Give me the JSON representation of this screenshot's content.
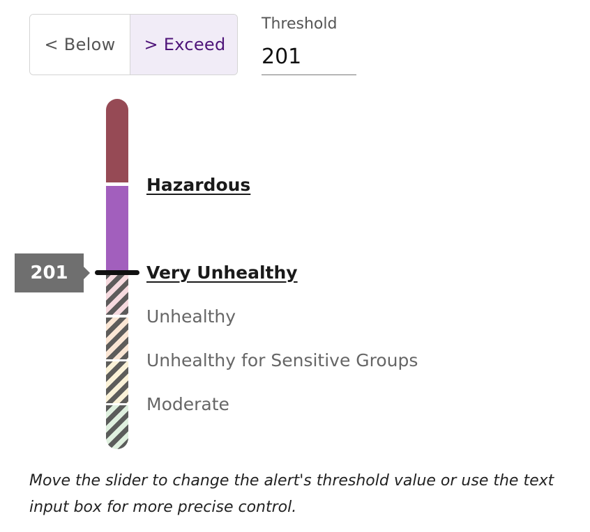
{
  "toggle": {
    "below_label": "< Below",
    "exceed_label": "> Exceed",
    "selected": "exceed"
  },
  "threshold": {
    "label": "Threshold",
    "value": "201"
  },
  "slider": {
    "value_label": "201",
    "level_names": {
      "hazardous": "Hazardous",
      "very_unhealthy": "Very Unhealthy",
      "unhealthy": "Unhealthy",
      "sensitive": "Unhealthy for Sensitive Groups",
      "moderate": "Moderate"
    },
    "colors": {
      "hazardous": "#964a55",
      "very_unhealthy": "#a25fbd",
      "very_unhealthy_inactive": "#f6dadf",
      "unhealthy": "#fbe6d4",
      "sensitive": "#fbf2d8",
      "moderate": "#dff0df"
    }
  },
  "help_text": "Move the slider to change the alert's threshold value or use the text input box for more precise control."
}
